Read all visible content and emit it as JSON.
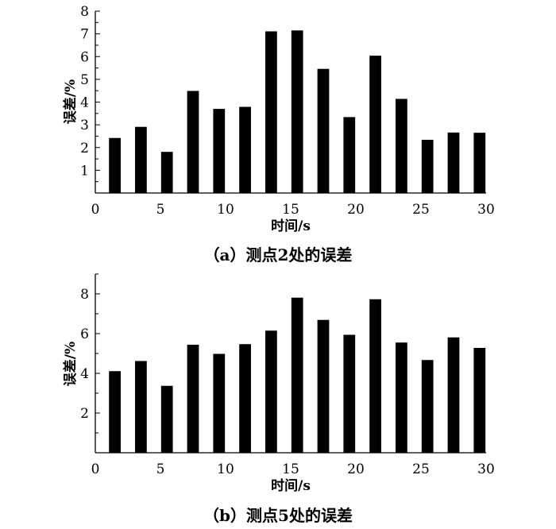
{
  "chart_data": [
    {
      "type": "bar",
      "title": "（a）测点2处的误差",
      "xlabel": "时间/s",
      "ylabel": "误差/%",
      "xlim": [
        0,
        30
      ],
      "ylim": [
        0,
        8
      ],
      "xticks": [
        0,
        5,
        10,
        15,
        20,
        25,
        30
      ],
      "yticks": [
        1,
        2,
        3,
        4,
        5,
        6,
        7,
        8
      ],
      "yminor": 0.5,
      "bar_width": 0.9,
      "x": [
        1.5,
        3.5,
        5.5,
        7.5,
        9.5,
        11.5,
        13.5,
        15.5,
        17.5,
        19.5,
        21.5,
        23.5,
        25.5,
        27.5,
        29.5
      ],
      "values": [
        2.42,
        2.91,
        1.81,
        4.49,
        3.7,
        3.79,
        7.11,
        7.15,
        5.46,
        3.34,
        6.04,
        4.14,
        2.34,
        2.66,
        2.65
      ],
      "color": "#000000",
      "grid": false
    },
    {
      "type": "bar",
      "title": "（b）测点5处的误差",
      "xlabel": "时间/s",
      "ylabel": "误差/%",
      "xlim": [
        0,
        30
      ],
      "ylim": [
        0,
        9
      ],
      "xticks": [
        0,
        5,
        10,
        15,
        20,
        25,
        30
      ],
      "yticks": [
        2,
        4,
        6,
        8
      ],
      "yminor": 1,
      "bar_width": 0.9,
      "x": [
        1.5,
        3.5,
        5.5,
        7.5,
        9.5,
        11.5,
        13.5,
        15.5,
        17.5,
        19.5,
        21.5,
        23.5,
        25.5,
        27.5,
        29.5
      ],
      "values": [
        4.11,
        4.62,
        3.37,
        5.44,
        4.98,
        5.47,
        6.15,
        7.81,
        6.69,
        5.94,
        7.73,
        5.55,
        4.67,
        5.81,
        5.28
      ],
      "color": "#000000",
      "grid": false
    }
  ]
}
